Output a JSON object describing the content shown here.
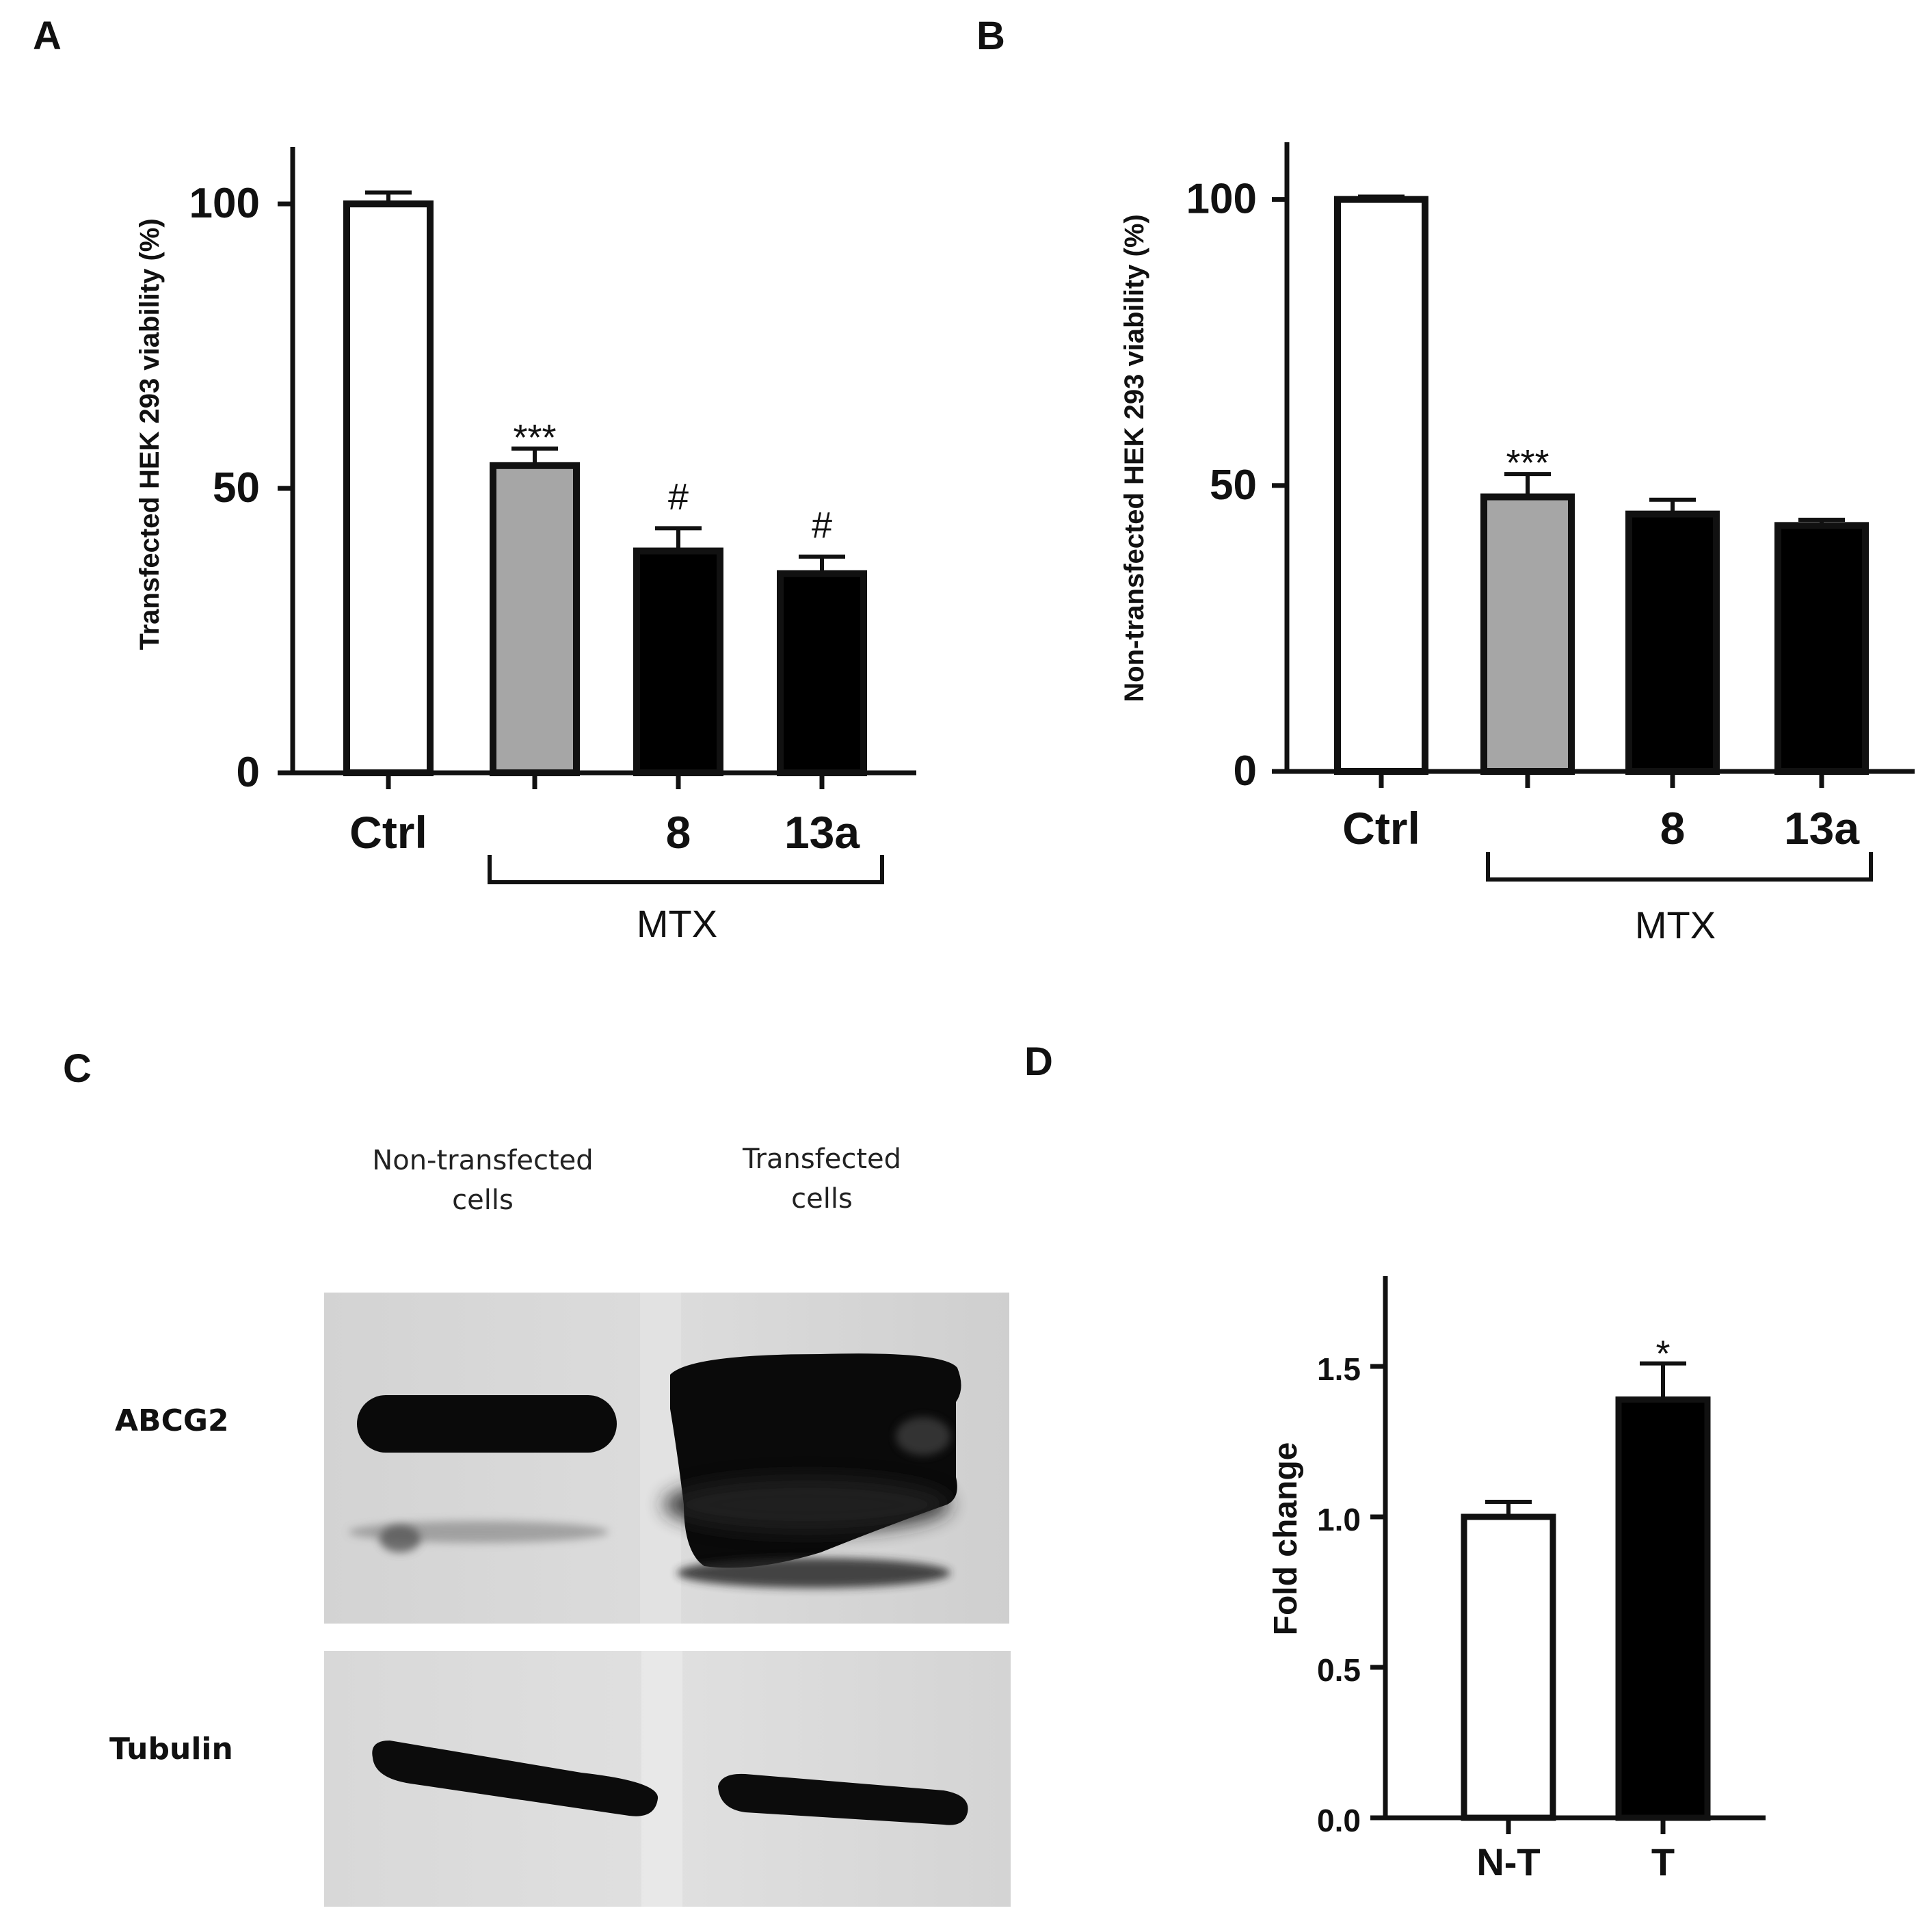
{
  "panels": {
    "A": "A",
    "B": "B",
    "C": "C",
    "D": "D"
  },
  "colors": {
    "control": "#ffffff",
    "mtx": "#a6a6a6",
    "compound": "#000000",
    "axis": "#111111"
  },
  "chart_data": [
    {
      "panel": "A",
      "type": "bar",
      "categories": [
        "Ctrl",
        "",
        "8",
        "13a"
      ],
      "values": [
        100,
        54,
        39,
        35
      ],
      "errors": [
        2,
        3,
        4,
        3
      ],
      "significance": [
        "",
        "***",
        "#",
        "#"
      ],
      "bar_colors": [
        "#ffffff",
        "#a6a6a6",
        "#000000",
        "#000000"
      ],
      "group_label": "MTX",
      "ylabel": "Transfected HEK 293 viability (%)",
      "yticks": [
        "0",
        "50",
        "100"
      ],
      "ytick_values": [
        0,
        50,
        100
      ],
      "ylim": [
        0,
        110
      ]
    },
    {
      "panel": "B",
      "type": "bar",
      "categories": [
        "Ctrl",
        "",
        "8",
        "13a"
      ],
      "values": [
        100,
        48,
        45,
        43
      ],
      "errors": [
        0.5,
        4,
        2.5,
        1
      ],
      "significance": [
        "",
        "***",
        "",
        ""
      ],
      "bar_colors": [
        "#ffffff",
        "#a6a6a6",
        "#000000",
        "#000000"
      ],
      "group_label": "MTX",
      "ylabel": "Non-transfected HEK 293 viability (%)",
      "yticks": [
        "0",
        "50",
        "100"
      ],
      "ytick_values": [
        0,
        50,
        100
      ],
      "ylim": [
        0,
        110
      ]
    },
    {
      "panel": "D",
      "type": "bar",
      "categories": [
        "N-T",
        "T"
      ],
      "values": [
        1.0,
        1.39
      ],
      "errors": [
        0.05,
        0.12
      ],
      "significance": [
        "",
        "*"
      ],
      "bar_colors": [
        "#ffffff",
        "#000000"
      ],
      "ylabel": "Fold change",
      "yticks": [
        "0.0",
        "0.5",
        "1.0",
        "1.5"
      ],
      "ytick_values": [
        0,
        0.5,
        1.0,
        1.5
      ],
      "ylim": [
        0,
        1.8
      ]
    }
  ],
  "blot": {
    "lane_labels": [
      {
        "line1": "Non-transfected",
        "line2": "cells"
      },
      {
        "line1": "Transfected",
        "line2": "cells"
      }
    ],
    "rows": [
      "ABCG2",
      "Tubulin"
    ]
  }
}
